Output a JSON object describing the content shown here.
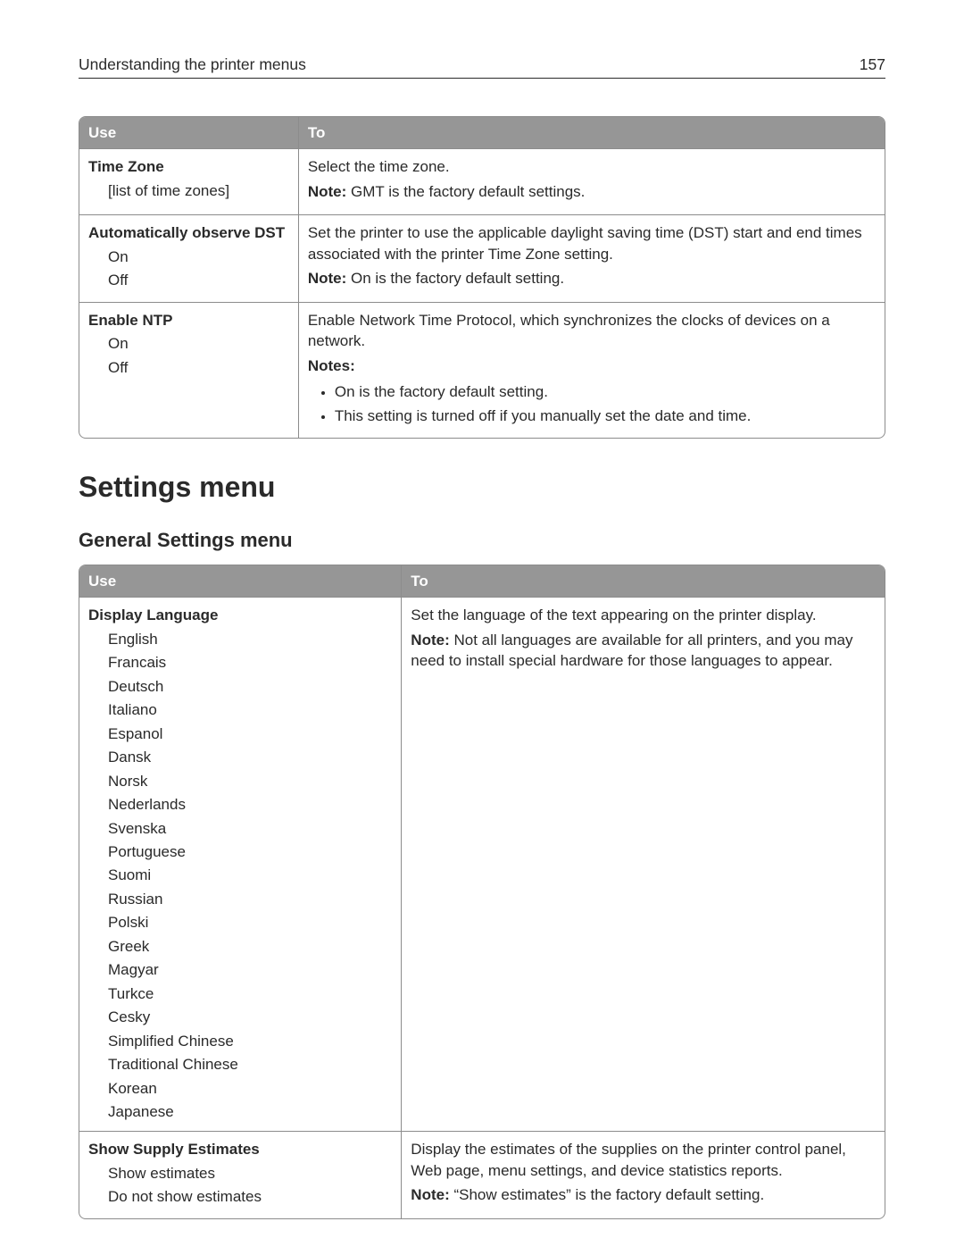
{
  "runhead": {
    "title": "Understanding the printer menus",
    "page": "157"
  },
  "table1": {
    "header": {
      "use": "Use",
      "to": "To"
    },
    "rows": [
      {
        "name": "Time Zone",
        "options": [
          "[list of time zones]"
        ],
        "desc": "Select the time zone.",
        "note_label": "Note:",
        "note": " GMT is the factory default settings."
      },
      {
        "name": "Automatically observe DST",
        "options": [
          "On",
          "Off"
        ],
        "desc": "Set the printer to use the applicable daylight saving time (DST) start and end times associated with the printer Time Zone setting.",
        "note_label": "Note:",
        "note": " On is the factory default setting."
      },
      {
        "name": "Enable NTP",
        "options": [
          "On",
          "Off"
        ],
        "desc": "Enable Network Time Protocol, which synchronizes the clocks of devices on a network.",
        "notes_label": "Notes:",
        "bullets": [
          "On is the factory default setting.",
          "This setting is turned off if you manually set the date and time."
        ]
      }
    ]
  },
  "section_heading": "Settings menu",
  "subsection_heading": "General Settings menu",
  "table2": {
    "header": {
      "use": "Use",
      "to": "To"
    },
    "rows": [
      {
        "name": "Display Language",
        "options": [
          "English",
          "Francais",
          "Deutsch",
          "Italiano",
          "Espanol",
          "Dansk",
          "Norsk",
          "Nederlands",
          "Svenska",
          "Portuguese",
          "Suomi",
          "Russian",
          "Polski",
          "Greek",
          "Magyar",
          "Turkce",
          "Cesky",
          "Simplified Chinese",
          "Traditional Chinese",
          "Korean",
          "Japanese"
        ],
        "desc": "Set the language of the text appearing on the printer display.",
        "note_label": "Note:",
        "note": " Not all languages are available for all printers, and you may need to install special hardware for those languages to appear."
      },
      {
        "name": "Show Supply Estimates",
        "options": [
          "Show estimates",
          "Do not show estimates"
        ],
        "desc": "Display the estimates of the supplies on the printer control panel, Web page, menu settings, and device statistics reports.",
        "note_label": "Note:",
        "note": " “Show estimates” is the factory default setting."
      }
    ]
  }
}
